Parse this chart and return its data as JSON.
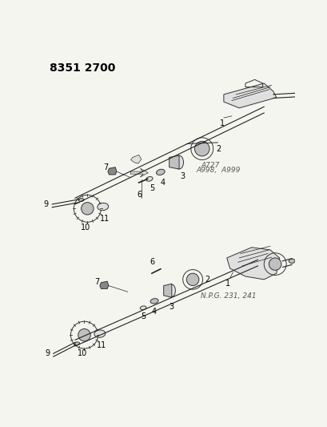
{
  "title": "8351 2700",
  "bg_color": "#f5f5f0",
  "label1_line1": "A727",
  "label1_line2": "A998,  A999",
  "label2_text": "N.P.G. 231, 241",
  "fig_width": 4.1,
  "fig_height": 5.33,
  "dpi": 100,
  "line_color": "#222222",
  "part_edge_color": "#333333",
  "part_fill_light": "#e0e0e0",
  "part_fill_mid": "#c0c0c0",
  "part_fill_dark": "#888888"
}
